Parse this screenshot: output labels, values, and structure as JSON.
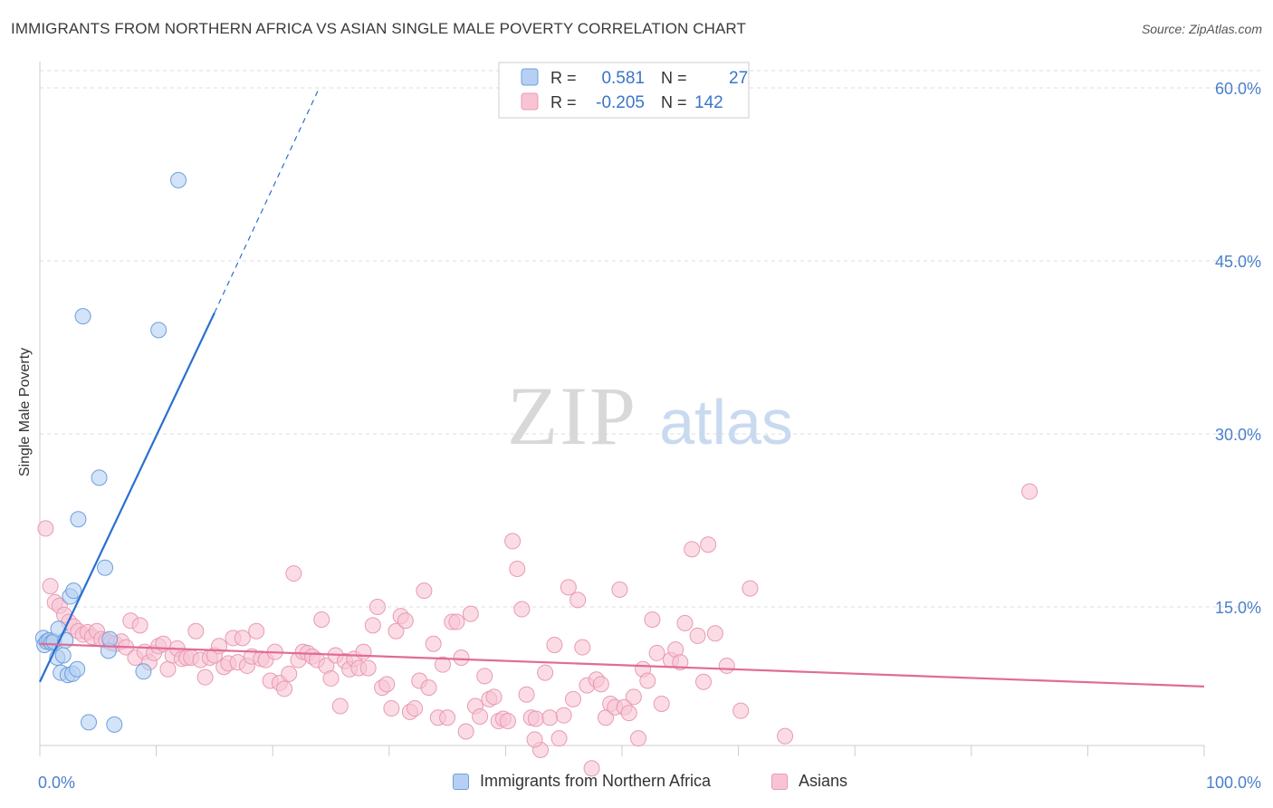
{
  "title": "IMMIGRANTS FROM NORTHERN AFRICA VS ASIAN SINGLE MALE POVERTY CORRELATION CHART",
  "source": "Source: ZipAtlas.com",
  "watermark": {
    "zip": "ZIP",
    "atlas": "atlas"
  },
  "colors": {
    "blue_fill": "#b6d0f4",
    "blue_stroke": "#6f9fdc",
    "blue_line": "#2a6fd0",
    "pink_fill": "#f8c4d4",
    "pink_stroke": "#e89ab4",
    "pink_line": "#e06c95",
    "axis_text": "#4a7fcb",
    "grid": "#dddddd"
  },
  "legend": {
    "rows": [
      {
        "r_label": "R =",
        "r_value": "0.581",
        "n_label": "N =",
        "n_value": "27"
      },
      {
        "r_label": "R =",
        "r_value": "-0.205",
        "n_label": "N =",
        "n_value": "142"
      }
    ]
  },
  "chart_data": {
    "type": "scatter",
    "title": "IMMIGRANTS FROM NORTHERN AFRICA VS ASIAN SINGLE MALE POVERTY CORRELATION CHART",
    "xlabel": "",
    "ylabel": "Single Male Poverty",
    "xlim": [
      0,
      100
    ],
    "ylim": [
      0,
      65
    ],
    "x_tick_labels": [
      "0.0%",
      "100.0%"
    ],
    "y_tick_labels": [
      {
        "value": 15,
        "label": "15.0%"
      },
      {
        "value": 30,
        "label": "30.0%"
      },
      {
        "value": 45,
        "label": "45.0%"
      },
      {
        "value": 60,
        "label": "60.0%"
      }
    ],
    "grid": true,
    "legend_position": "bottom",
    "series": [
      {
        "name": "Immigrants from Northern Africa",
        "color": "blue",
        "points": [
          [
            0.3,
            12.3
          ],
          [
            0.4,
            11.7
          ],
          [
            0.6,
            12.0
          ],
          [
            0.8,
            12.1
          ],
          [
            1.0,
            11.9
          ],
          [
            1.2,
            12.0
          ],
          [
            1.5,
            10.6
          ],
          [
            1.6,
            13.1
          ],
          [
            1.8,
            9.3
          ],
          [
            2.0,
            10.8
          ],
          [
            2.2,
            12.1
          ],
          [
            2.4,
            9.1
          ],
          [
            2.6,
            15.9
          ],
          [
            2.8,
            9.2
          ],
          [
            2.9,
            16.4
          ],
          [
            3.2,
            9.6
          ],
          [
            3.3,
            22.6
          ],
          [
            3.7,
            40.2
          ],
          [
            4.2,
            5.0
          ],
          [
            5.1,
            26.2
          ],
          [
            5.6,
            18.4
          ],
          [
            5.9,
            11.2
          ],
          [
            6.4,
            4.8
          ],
          [
            8.9,
            9.4
          ],
          [
            10.2,
            39.0
          ],
          [
            11.9,
            52.0
          ],
          [
            6.0,
            12.2
          ]
        ],
        "trend_solid": {
          "x": [
            0.0,
            15.0
          ],
          "y": [
            8.5,
            40.5
          ]
        },
        "trend_dashed": {
          "x": [
            15.0,
            24.0
          ],
          "y": [
            40.5,
            60.0
          ]
        }
      },
      {
        "name": "Asians",
        "color": "pink",
        "points": [
          [
            0.5,
            21.8
          ],
          [
            0.9,
            16.8
          ],
          [
            1.3,
            15.4
          ],
          [
            1.7,
            15.1
          ],
          [
            2.1,
            14.3
          ],
          [
            2.5,
            13.7
          ],
          [
            2.9,
            13.3
          ],
          [
            3.3,
            12.9
          ],
          [
            3.7,
            12.6
          ],
          [
            4.1,
            12.8
          ],
          [
            4.5,
            12.4
          ],
          [
            4.9,
            12.9
          ],
          [
            5.3,
            12.2
          ],
          [
            5.7,
            12.1
          ],
          [
            6.1,
            11.9
          ],
          [
            6.5,
            11.8
          ],
          [
            7.0,
            12.0
          ],
          [
            7.4,
            11.5
          ],
          [
            7.8,
            13.8
          ],
          [
            8.2,
            10.6
          ],
          [
            8.6,
            13.4
          ],
          [
            9.0,
            11.1
          ],
          [
            9.4,
            10.2
          ],
          [
            9.8,
            11.0
          ],
          [
            10.2,
            11.6
          ],
          [
            10.6,
            11.8
          ],
          [
            11.0,
            9.6
          ],
          [
            11.4,
            10.8
          ],
          [
            11.8,
            11.4
          ],
          [
            12.2,
            10.5
          ],
          [
            12.6,
            10.6
          ],
          [
            13.0,
            10.6
          ],
          [
            13.4,
            12.9
          ],
          [
            13.8,
            10.4
          ],
          [
            14.2,
            8.9
          ],
          [
            14.6,
            10.6
          ],
          [
            15.0,
            10.8
          ],
          [
            15.4,
            11.6
          ],
          [
            15.8,
            9.8
          ],
          [
            16.2,
            10.1
          ],
          [
            16.6,
            12.3
          ],
          [
            17.0,
            10.2
          ],
          [
            17.4,
            12.3
          ],
          [
            17.8,
            9.9
          ],
          [
            18.2,
            10.7
          ],
          [
            18.6,
            12.9
          ],
          [
            19.0,
            10.5
          ],
          [
            19.4,
            10.4
          ],
          [
            19.8,
            8.6
          ],
          [
            20.2,
            11.1
          ],
          [
            20.6,
            8.4
          ],
          [
            21.0,
            7.9
          ],
          [
            21.4,
            9.2
          ],
          [
            21.8,
            17.9
          ],
          [
            22.2,
            10.4
          ],
          [
            22.6,
            11.1
          ],
          [
            23.0,
            11.0
          ],
          [
            23.4,
            10.7
          ],
          [
            23.8,
            10.4
          ],
          [
            24.2,
            13.9
          ],
          [
            24.6,
            9.9
          ],
          [
            25.0,
            8.8
          ],
          [
            25.4,
            10.8
          ],
          [
            25.8,
            6.4
          ],
          [
            26.2,
            10.3
          ],
          [
            26.6,
            9.6
          ],
          [
            27.0,
            10.5
          ],
          [
            27.4,
            9.7
          ],
          [
            27.8,
            11.1
          ],
          [
            28.2,
            9.7
          ],
          [
            28.6,
            13.4
          ],
          [
            29.0,
            15.0
          ],
          [
            29.4,
            8.0
          ],
          [
            29.8,
            8.3
          ],
          [
            30.2,
            6.2
          ],
          [
            30.6,
            12.9
          ],
          [
            31.0,
            14.2
          ],
          [
            31.4,
            13.8
          ],
          [
            31.8,
            5.9
          ],
          [
            32.2,
            6.2
          ],
          [
            32.6,
            8.6
          ],
          [
            33.0,
            16.4
          ],
          [
            33.4,
            8.0
          ],
          [
            33.8,
            11.8
          ],
          [
            34.2,
            5.4
          ],
          [
            34.6,
            10.0
          ],
          [
            35.0,
            5.4
          ],
          [
            35.4,
            13.7
          ],
          [
            35.8,
            13.7
          ],
          [
            36.2,
            10.6
          ],
          [
            36.6,
            4.2
          ],
          [
            37.0,
            14.4
          ],
          [
            37.4,
            6.4
          ],
          [
            37.8,
            5.5
          ],
          [
            38.2,
            9.0
          ],
          [
            38.6,
            7.0
          ],
          [
            39.0,
            7.2
          ],
          [
            39.4,
            5.1
          ],
          [
            39.8,
            5.3
          ],
          [
            40.2,
            5.1
          ],
          [
            40.6,
            20.7
          ],
          [
            41.0,
            18.3
          ],
          [
            41.4,
            14.8
          ],
          [
            41.8,
            7.4
          ],
          [
            42.2,
            5.4
          ],
          [
            42.6,
            5.3
          ],
          [
            43.0,
            2.6
          ],
          [
            43.4,
            9.3
          ],
          [
            43.8,
            5.4
          ],
          [
            44.2,
            11.7
          ],
          [
            44.6,
            3.6
          ],
          [
            45.0,
            5.6
          ],
          [
            45.4,
            16.7
          ],
          [
            45.8,
            7.0
          ],
          [
            46.2,
            15.6
          ],
          [
            46.6,
            11.5
          ],
          [
            47.0,
            8.2
          ],
          [
            47.4,
            1.0
          ],
          [
            47.8,
            8.7
          ],
          [
            48.2,
            8.3
          ],
          [
            48.6,
            5.4
          ],
          [
            49.0,
            6.6
          ],
          [
            49.4,
            6.3
          ],
          [
            49.8,
            16.5
          ],
          [
            50.2,
            6.3
          ],
          [
            50.6,
            5.8
          ],
          [
            51.0,
            7.2
          ],
          [
            51.4,
            3.6
          ],
          [
            51.8,
            9.6
          ],
          [
            52.2,
            8.6
          ],
          [
            52.6,
            13.9
          ],
          [
            53.0,
            11.0
          ],
          [
            53.4,
            6.6
          ],
          [
            54.2,
            10.4
          ],
          [
            54.6,
            11.3
          ],
          [
            55.0,
            10.2
          ],
          [
            55.4,
            13.6
          ],
          [
            56.0,
            20.0
          ],
          [
            57.0,
            8.5
          ],
          [
            57.4,
            20.4
          ],
          [
            58.0,
            12.7
          ],
          [
            59.0,
            9.9
          ],
          [
            60.2,
            6.0
          ],
          [
            61.0,
            16.6
          ],
          [
            64.0,
            3.8
          ],
          [
            85.0,
            25.0
          ],
          [
            56.5,
            12.5
          ],
          [
            42.5,
            3.5
          ]
        ],
        "trend_solid": {
          "x": [
            0.0,
            100.0
          ],
          "y": [
            11.8,
            8.1
          ]
        }
      }
    ]
  },
  "bottom_legend": [
    "Immigrants from Northern Africa",
    "Asians"
  ]
}
